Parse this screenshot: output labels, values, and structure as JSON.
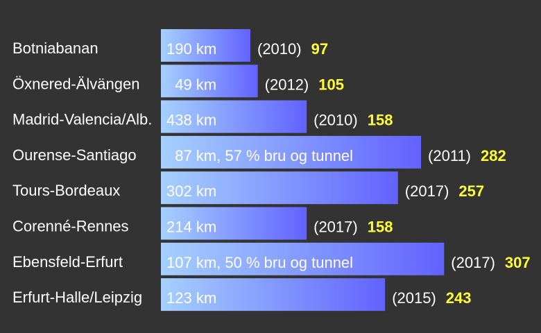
{
  "colors": {
    "background": "#333333",
    "bar_gradient_start": "#a6d0ff",
    "bar_gradient_end": "#6262ff",
    "text": "#ffffff",
    "value_highlight": "#ffff33"
  },
  "chart_data": {
    "type": "bar",
    "orientation": "horizontal",
    "title": "",
    "xlabel": "",
    "ylabel": "",
    "grid": false,
    "legend": "none",
    "xlim": [
      0,
      330
    ],
    "categories": [
      "Botniabanan",
      "Öxnered-Älvängen",
      "Madrid-Valencia/Alb.",
      "Ourense-Santiago",
      "Tours-Bordeaux",
      "Corenné-Rennes",
      "Ebensfeld-Erfurt",
      "Erfurt-Halle/Leipzig"
    ],
    "bar_labels": [
      "190 km",
      "  49 km",
      "438 km",
      "  87 km, 57 % bru og tunnel",
      "302 km",
      "214 km",
      "107 km, 50 % bru og tunnel",
      "123 km"
    ],
    "years": [
      "(2010)",
      "(2012)",
      "(2010)",
      "(2011)",
      "(2017)",
      "(2017)",
      "(2017)",
      "(2015)"
    ],
    "values": [
      97,
      105,
      158,
      282,
      257,
      158,
      307,
      243
    ]
  }
}
